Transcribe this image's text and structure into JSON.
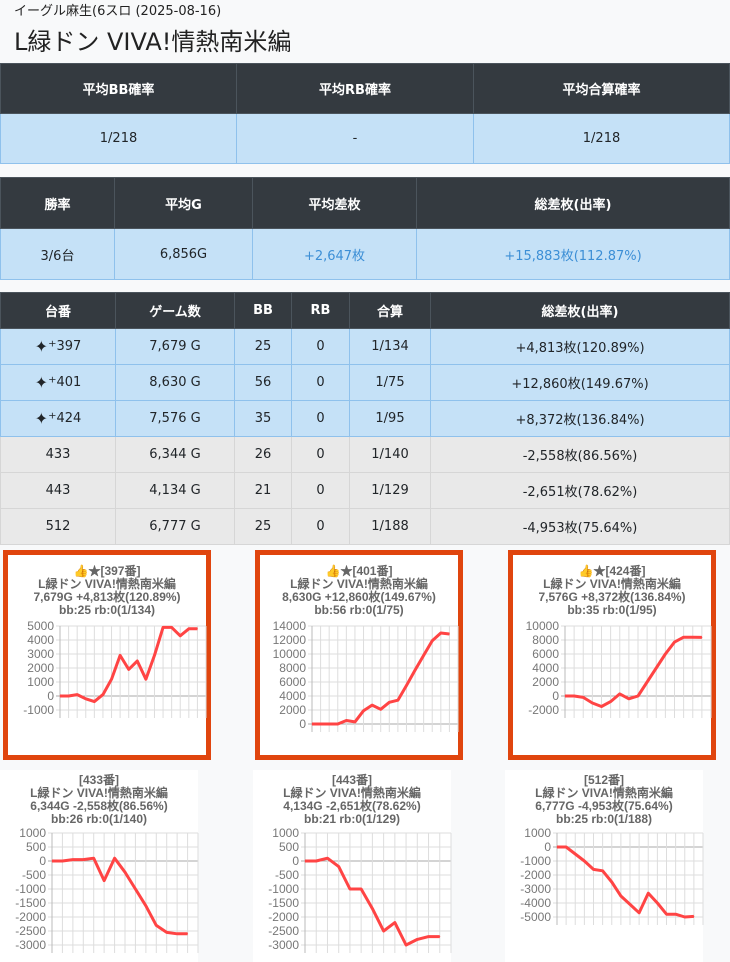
{
  "header": {
    "store": "イーグル麻生(6スロ (2025-08-16)",
    "machine": "L緑ドン VIVA!情熱南米編"
  },
  "summary1": {
    "headers": [
      "平均BB確率",
      "平均RB確率",
      "平均合算確率"
    ],
    "values": [
      "1/218",
      "-",
      "1/218"
    ]
  },
  "summary2": {
    "headers": [
      "勝率",
      "平均G",
      "平均差枚",
      "総差枚(出率)"
    ],
    "values": [
      "3/6台",
      "6,856G",
      "+2,647枚",
      "+15,883枚(112.87%)"
    ]
  },
  "units": {
    "headers": [
      "台番",
      "ゲーム数",
      "BB",
      "RB",
      "合算",
      "総差枚(出率)"
    ],
    "rows": [
      {
        "no": "397",
        "star": true,
        "games": "7,679 G",
        "bb": "25",
        "rb": "0",
        "total": "1/134",
        "diff": "+4,813枚(120.89%)"
      },
      {
        "no": "401",
        "star": true,
        "games": "8,630 G",
        "bb": "56",
        "rb": "0",
        "total": "1/75",
        "diff": "+12,860枚(149.67%)"
      },
      {
        "no": "424",
        "star": true,
        "games": "7,576 G",
        "bb": "35",
        "rb": "0",
        "total": "1/95",
        "diff": "+8,372枚(136.84%)"
      },
      {
        "no": "433",
        "star": false,
        "games": "6,344 G",
        "bb": "26",
        "rb": "0",
        "total": "1/140",
        "diff": "-2,558枚(86.56%)"
      },
      {
        "no": "443",
        "star": false,
        "games": "4,134 G",
        "bb": "21",
        "rb": "0",
        "total": "1/129",
        "diff": "-2,651枚(78.62%)"
      },
      {
        "no": "512",
        "star": false,
        "games": "6,777 G",
        "bb": "25",
        "rb": "0",
        "total": "1/188",
        "diff": "-4,953枚(75.64%)"
      }
    ]
  },
  "colors": {
    "highlight_border": "#e0450e",
    "line": "#ff4444",
    "header_bg": "#343a40",
    "row_blue": "#c5e1f7",
    "row_grey": "#e9e9e9",
    "positive": "#3d8fd6"
  },
  "chart_data": [
    {
      "type": "line",
      "title": "👍★[397番]",
      "lines": [
        "L緑ドン VIVA!情熱南米編",
        "7,679G +4,813枚(120.89%)",
        "bb:25 rb:0(1/134)"
      ],
      "ylim": [
        -1000,
        5000
      ],
      "ystep": 1000,
      "grid": true,
      "highlight": true,
      "values": [
        0,
        0,
        100,
        -200,
        -400,
        100,
        1200,
        2900,
        1900,
        2500,
        1200,
        2900,
        4900,
        4900,
        4300,
        4800,
        4800
      ]
    },
    {
      "type": "line",
      "title": "👍★[401番]",
      "lines": [
        "L緑ドン VIVA!情熱南米編",
        "8,630G +12,860枚(149.67%)",
        "bb:56 rb:0(1/75)"
      ],
      "ylim": [
        0,
        14000
      ],
      "ystep": 2000,
      "grid": true,
      "highlight": true,
      "values": [
        0,
        0,
        0,
        0,
        500,
        300,
        1900,
        2700,
        2100,
        3100,
        3400,
        5500,
        7700,
        9800,
        11900,
        13000,
        12860
      ]
    },
    {
      "type": "line",
      "title": "👍★[424番]",
      "lines": [
        "L緑ドン VIVA!情熱南米編",
        "7,576G +8,372枚(136.84%)",
        "bb:35 rb:0(1/95)"
      ],
      "ylim": [
        -2000,
        10000
      ],
      "ystep": 2000,
      "grid": true,
      "highlight": true,
      "values": [
        0,
        0,
        -200,
        -1000,
        -1500,
        -800,
        300,
        -400,
        0,
        2000,
        4000,
        6000,
        7700,
        8400,
        8400,
        8372
      ]
    },
    {
      "type": "line",
      "title": "[433番]",
      "lines": [
        "L緑ドン VIVA!情熱南米編",
        "6,344G -2,558枚(86.56%)",
        "bb:26 rb:0(1/140)"
      ],
      "ylim": [
        -3000,
        1000
      ],
      "ystep": 500,
      "grid": true,
      "highlight": false,
      "values": [
        0,
        0,
        50,
        50,
        100,
        -700,
        100,
        -400,
        -1000,
        -1600,
        -2300,
        -2550,
        -2600,
        -2600
      ]
    },
    {
      "type": "line",
      "title": "[443番]",
      "lines": [
        "L緑ドン VIVA!情熱南米編",
        "4,134G -2,651枚(78.62%)",
        "bb:21 rb:0(1/129)"
      ],
      "ylim": [
        -3000,
        1000
      ],
      "ystep": 500,
      "grid": true,
      "highlight": false,
      "values": [
        0,
        0,
        100,
        -200,
        -1000,
        -1000,
        -1700,
        -2500,
        -2200,
        -3000,
        -2800,
        -2700,
        -2700
      ]
    },
    {
      "type": "line",
      "title": "[512番]",
      "lines": [
        "L緑ドン VIVA!情熱南米編",
        "6,777G -4,953枚(75.64%)",
        "bb:25 rb:0(1/188)"
      ],
      "ylim": [
        -5000,
        1000
      ],
      "ystep": 1000,
      "grid": true,
      "highlight": false,
      "values": [
        0,
        0,
        -500,
        -1000,
        -1600,
        -1700,
        -2500,
        -3500,
        -4100,
        -4700,
        -3300,
        -4000,
        -4800,
        -4800,
        -5000,
        -4953
      ]
    }
  ]
}
